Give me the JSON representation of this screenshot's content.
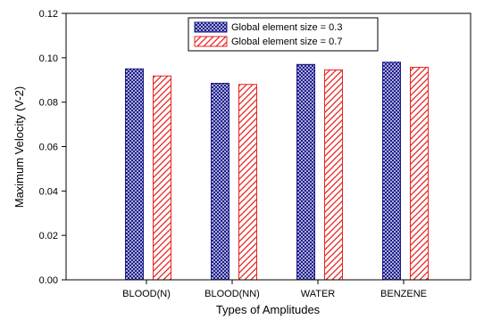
{
  "chart_data": {
    "type": "bar",
    "title": "",
    "xlabel": "Types of Amplitudes",
    "ylabel": "Maximum Velocity (V-2)",
    "categories": [
      "BLOOD(N)",
      "BLOOD(NN)",
      "WATER",
      "BENZENE"
    ],
    "ylim": [
      0.0,
      0.12
    ],
    "yticks": [
      "0.00",
      "0.02",
      "0.04",
      "0.06",
      "0.08",
      "0.10",
      "0.12"
    ],
    "grid": false,
    "legend_position": "top-center",
    "series": [
      {
        "name": "Global element size = 0.3",
        "values": [
          0.095,
          0.0885,
          0.097,
          0.098
        ],
        "color": "#1a1a8c",
        "pattern": "crosshatch"
      },
      {
        "name": "Global element size = 0.7",
        "values": [
          0.0918,
          0.088,
          0.0945,
          0.0957
        ],
        "color": "#e8231f",
        "pattern": "diagonal"
      }
    ]
  }
}
